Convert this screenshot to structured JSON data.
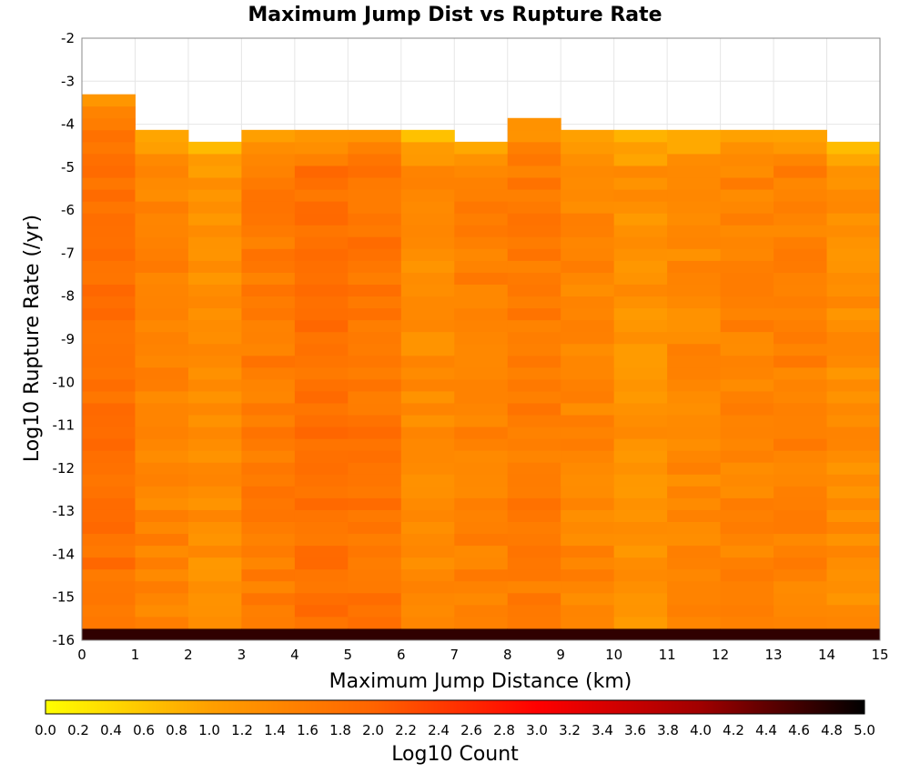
{
  "chart_data": {
    "type": "heatmap",
    "title": "Maximum Jump Dist vs Rupture Rate",
    "xlabel": "Maximum Jump Distance (km)",
    "ylabel": "Log10 Rupture Rate (/yr)",
    "xlim": [
      0,
      15
    ],
    "ylim": [
      -16,
      -2
    ],
    "x_ticks": [
      "0",
      "1",
      "2",
      "3",
      "4",
      "5",
      "6",
      "7",
      "8",
      "9",
      "10",
      "11",
      "12",
      "13",
      "14",
      "15"
    ],
    "y_ticks": [
      "-2",
      "-3",
      "-4",
      "-5",
      "-6",
      "-7",
      "-8",
      "-9",
      "-10",
      "-11",
      "-12",
      "-13",
      "-14",
      "-15",
      "-16"
    ],
    "x_bin_width": 1,
    "y_bin_height": 0.276,
    "y_bin_start": -16,
    "grid": true,
    "colorbar": {
      "label": "Log10 Count",
      "min": 0.0,
      "max": 5.0,
      "ticks": [
        "0.0",
        "0.2",
        "0.4",
        "0.6",
        "0.8",
        "1.0",
        "1.2",
        "1.4",
        "1.6",
        "1.8",
        "2.0",
        "2.2",
        "2.4",
        "2.6",
        "2.8",
        "3.0",
        "3.2",
        "3.4",
        "3.6",
        "3.8",
        "4.0",
        "4.2",
        "4.4",
        "4.6",
        "4.8",
        "5.0"
      ],
      "colors": [
        "#ffff00",
        "#ffa000",
        "#ff6400",
        "#ff0000",
        "#a00000",
        "#000000"
      ],
      "placement": "bottom"
    },
    "column_top_rows": [
      45,
      42,
      41,
      42,
      42,
      42,
      42,
      41,
      43,
      42,
      42,
      42,
      42,
      42,
      41
    ],
    "column_base_values": [
      1.78,
      1.48,
      1.3,
      1.6,
      1.8,
      1.72,
      1.35,
      1.52,
      1.62,
      1.45,
      1.25,
      1.4,
      1.48,
      1.52,
      1.32
    ],
    "bottom_row_value": 4.7
  }
}
